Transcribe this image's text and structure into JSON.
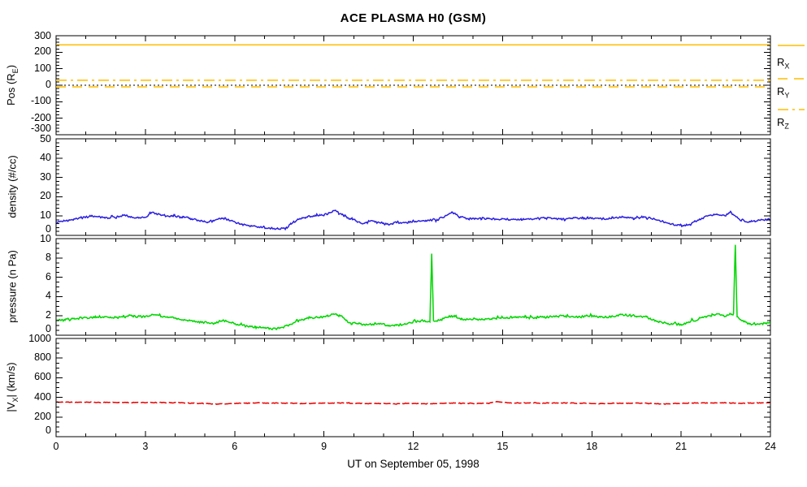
{
  "chart_data": {
    "type": "line",
    "title": "ACE PLASMA H0 (GSM)",
    "xlabel": "UT on September 05, 1998",
    "x_axis": {
      "min": 0,
      "max": 24,
      "major_ticks": [
        0,
        3,
        6,
        9,
        12,
        15,
        18,
        21,
        24
      ],
      "minor_step": 1
    },
    "colors": {
      "orange": "#FFBE00",
      "blue": "#2B20E0",
      "green": "#00D600",
      "red": "#E80000",
      "black": "#000000",
      "background": "#FFFFFF"
    },
    "panels": [
      {
        "name": "position",
        "ylabel": {
          "pre": "Pos (R",
          "sub": "E",
          "post": ")"
        },
        "ymin": -300,
        "ymax": 300,
        "yticks": [
          300,
          200,
          100,
          0,
          -100,
          -200,
          -300
        ],
        "minor_step": 20,
        "series": [
          {
            "name": "R_X",
            "style": "solid",
            "color_key": "orange",
            "value": 245
          },
          {
            "name": "R_Y",
            "style": "dash",
            "color_key": "orange",
            "value": -10
          },
          {
            "name": "R_Z",
            "style": "dashdot",
            "color_key": "orange",
            "value": 30
          }
        ],
        "reference_line": {
          "value": 0,
          "style": "dot",
          "color_key": "black"
        }
      },
      {
        "name": "density",
        "ylabel": {
          "pre": "density (#/cc)",
          "sub": "",
          "post": ""
        },
        "ymin": 0,
        "ymax": 50,
        "yticks": [
          50,
          40,
          30,
          20,
          10,
          0
        ],
        "minor_step": 2,
        "series": [
          {
            "name": "density",
            "style": "solid",
            "color_key": "blue",
            "noise": 0.55,
            "keypoints": [
              [
                0,
                7
              ],
              [
                0.3,
                7.5
              ],
              [
                0.6,
                8.5
              ],
              [
                1,
                9.5
              ],
              [
                1.3,
                10
              ],
              [
                1.6,
                9
              ],
              [
                2,
                9.5
              ],
              [
                2.3,
                10.5
              ],
              [
                2.6,
                9
              ],
              [
                3,
                9.5
              ],
              [
                3.2,
                12
              ],
              [
                3.5,
                10.5
              ],
              [
                3.8,
                10
              ],
              [
                4.2,
                9.5
              ],
              [
                4.6,
                8.5
              ],
              [
                5,
                7
              ],
              [
                5.3,
                7.5
              ],
              [
                5.6,
                9
              ],
              [
                5.9,
                7.5
              ],
              [
                6.3,
                5.5
              ],
              [
                6.7,
                4.5
              ],
              [
                7,
                4
              ],
              [
                7.4,
                3.5
              ],
              [
                7.7,
                3.5
              ],
              [
                7.9,
                6
              ],
              [
                8.2,
                9
              ],
              [
                8.6,
                10
              ],
              [
                9,
                10.5
              ],
              [
                9.35,
                13
              ],
              [
                9.55,
                11.5
              ],
              [
                9.8,
                9
              ],
              [
                10,
                8
              ],
              [
                10.3,
                6
              ],
              [
                10.5,
                7.5
              ],
              [
                10.8,
                7
              ],
              [
                11.2,
                5.5
              ],
              [
                11.4,
                7
              ],
              [
                11.7,
                6.5
              ],
              [
                12,
                7
              ],
              [
                12.4,
                7.5
              ],
              [
                12.8,
                8
              ],
              [
                13,
                9.5
              ],
              [
                13.3,
                12
              ],
              [
                13.6,
                9.5
              ],
              [
                13.9,
                8.5
              ],
              [
                14.3,
                9
              ],
              [
                14.7,
                8.5
              ],
              [
                15,
                8.5
              ],
              [
                15.5,
                8
              ],
              [
                16,
                8.5
              ],
              [
                16.5,
                9
              ],
              [
                17,
                8.5
              ],
              [
                17.5,
                9
              ],
              [
                18,
                9
              ],
              [
                18.5,
                8.5
              ],
              [
                19,
                9.5
              ],
              [
                19.4,
                9
              ],
              [
                19.8,
                9.5
              ],
              [
                20.2,
                8
              ],
              [
                20.6,
                6
              ],
              [
                21,
                5
              ],
              [
                21.3,
                5.5
              ],
              [
                21.6,
                8
              ],
              [
                21.9,
                10
              ],
              [
                22.2,
                11
              ],
              [
                22.45,
                10
              ],
              [
                22.65,
                12
              ],
              [
                22.9,
                9
              ],
              [
                23.2,
                7
              ],
              [
                23.5,
                7.5
              ],
              [
                23.8,
                8
              ],
              [
                24,
                8.5
              ]
            ]
          }
        ]
      },
      {
        "name": "pressure",
        "ylabel": {
          "pre": "pressure (n Pa)",
          "sub": "",
          "post": ""
        },
        "ymin": 0,
        "ymax": 10,
        "yticks": [
          10,
          8,
          6,
          4,
          2,
          0
        ],
        "minor_step": 0.5,
        "series": [
          {
            "name": "pressure",
            "style": "solid",
            "color_key": "green",
            "noise": 0.12,
            "keypoints": [
              [
                0,
                1.5
              ],
              [
                0.5,
                1.7
              ],
              [
                1,
                1.8
              ],
              [
                1.5,
                1.9
              ],
              [
                2,
                1.8
              ],
              [
                2.5,
                2.0
              ],
              [
                3,
                1.9
              ],
              [
                3.3,
                2.2
              ],
              [
                3.6,
                1.9
              ],
              [
                4,
                1.8
              ],
              [
                4.5,
                1.5
              ],
              [
                5,
                1.3
              ],
              [
                5.3,
                1.2
              ],
              [
                5.6,
                1.5
              ],
              [
                6,
                1.2
              ],
              [
                6.5,
                0.9
              ],
              [
                7,
                0.75
              ],
              [
                7.5,
                0.65
              ],
              [
                7.8,
                1.0
              ],
              [
                8.2,
                1.6
              ],
              [
                8.6,
                1.8
              ],
              [
                9,
                1.9
              ],
              [
                9.4,
                2.2
              ],
              [
                9.6,
                2.0
              ],
              [
                9.8,
                1.4
              ],
              [
                10.1,
                1.2
              ],
              [
                10.4,
                1.1
              ],
              [
                10.8,
                1.2
              ],
              [
                11.2,
                1.0
              ],
              [
                11.6,
                1.1
              ],
              [
                12,
                1.4
              ],
              [
                12.3,
                1.5
              ],
              [
                12.56,
                1.3
              ],
              [
                12.62,
                8.5
              ],
              [
                12.68,
                1.4
              ],
              [
                13,
                1.7
              ],
              [
                13.3,
                2.0
              ],
              [
                13.6,
                1.7
              ],
              [
                14,
                1.6
              ],
              [
                14.5,
                1.7
              ],
              [
                15,
                1.8
              ],
              [
                15.5,
                1.9
              ],
              [
                16,
                1.8
              ],
              [
                16.5,
                1.9
              ],
              [
                17,
                2.0
              ],
              [
                17.5,
                1.9
              ],
              [
                18,
                2.0
              ],
              [
                18.5,
                1.9
              ],
              [
                19,
                2.1
              ],
              [
                19.4,
                2.0
              ],
              [
                19.8,
                1.9
              ],
              [
                20.2,
                1.4
              ],
              [
                20.6,
                1.2
              ],
              [
                21,
                1.1
              ],
              [
                21.4,
                1.5
              ],
              [
                21.8,
                1.9
              ],
              [
                22.2,
                2.2
              ],
              [
                22.5,
                2.0
              ],
              [
                22.76,
                2.3
              ],
              [
                22.82,
                9.5
              ],
              [
                22.88,
                1.9
              ],
              [
                23.1,
                1.4
              ],
              [
                23.4,
                1.1
              ],
              [
                23.7,
                1.2
              ],
              [
                24,
                1.3
              ]
            ]
          }
        ]
      },
      {
        "name": "velocity",
        "ylabel": {
          "pre": "|V",
          "sub": "X",
          "post": "| (km/s)"
        },
        "ymin": 0,
        "ymax": 1000,
        "yticks": [
          1000,
          800,
          600,
          400,
          200,
          0
        ],
        "minor_step": 50,
        "series": [
          {
            "name": "|V_X|",
            "style": "gapped",
            "color_key": "red",
            "noise": 3.5,
            "keypoints": [
              [
                0,
                352
              ],
              [
                1,
                350
              ],
              [
                2,
                348
              ],
              [
                3,
                348
              ],
              [
                4,
                346
              ],
              [
                4.6,
                340
              ],
              [
                5,
                338
              ],
              [
                5.4,
                332
              ],
              [
                5.8,
                336
              ],
              [
                6.2,
                342
              ],
              [
                7,
                343
              ],
              [
                7.5,
                342
              ],
              [
                8,
                340
              ],
              [
                8.5,
                338
              ],
              [
                9,
                342
              ],
              [
                9.5,
                344
              ],
              [
                10,
                340
              ],
              [
                10.5,
                338
              ],
              [
                11,
                336
              ],
              [
                11.5,
                337
              ],
              [
                12,
                338
              ],
              [
                12.5,
                334
              ],
              [
                13,
                340
              ],
              [
                13.5,
                342
              ],
              [
                14,
                338
              ],
              [
                14.5,
                340
              ],
              [
                14.8,
                358
              ],
              [
                15,
                350
              ],
              [
                15.3,
                344
              ],
              [
                15.7,
                342
              ],
              [
                16,
                344
              ],
              [
                16.5,
                342
              ],
              [
                17,
                344
              ],
              [
                17.5,
                341
              ],
              [
                18,
                339
              ],
              [
                18.5,
                337
              ],
              [
                19,
                340
              ],
              [
                19.5,
                341
              ],
              [
                20,
                339
              ],
              [
                20.4,
                332
              ],
              [
                20.8,
                338
              ],
              [
                21.2,
                341
              ],
              [
                21.6,
                342
              ],
              [
                22,
                343
              ],
              [
                22.5,
                344
              ],
              [
                23,
                340
              ],
              [
                23.5,
                344
              ],
              [
                24,
                346
              ]
            ]
          }
        ]
      }
    ],
    "legend": {
      "items": [
        {
          "pre": "R",
          "sub": "X",
          "style": "solid"
        },
        {
          "pre": "R",
          "sub": "Y",
          "style": "dash"
        },
        {
          "pre": "R",
          "sub": "Z",
          "style": "dashdot"
        }
      ]
    }
  }
}
